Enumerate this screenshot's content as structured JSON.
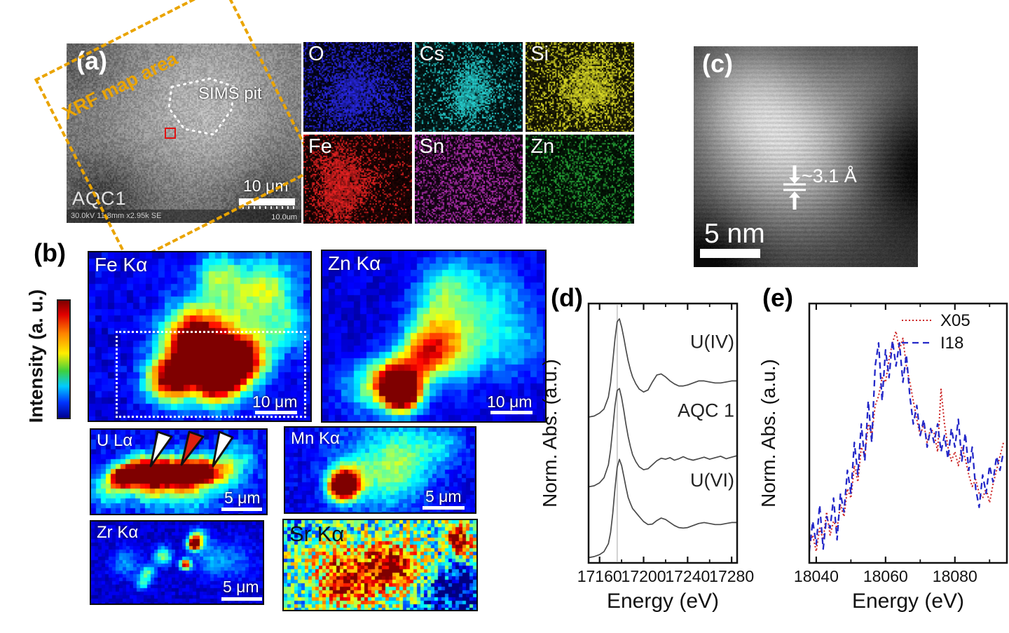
{
  "panel_a": {
    "label": "(a)",
    "xrf_area_label": "XRF map area",
    "sims_pit_label": "SIMS pit",
    "sample_id": "AQC1",
    "scalebar": "10 μm",
    "meta_info": "30.0kV 11.8mm x2.95k SE",
    "meta_scale": "10.0um",
    "dash_color": "#eaa400",
    "marker_color": "#e01212"
  },
  "eds": {
    "maps": [
      {
        "element": "O",
        "color": "#2a2af0"
      },
      {
        "element": "Cs",
        "color": "#28d8d8"
      },
      {
        "element": "Si",
        "color": "#e6e628"
      },
      {
        "element": "Fe",
        "color": "#f02323"
      },
      {
        "element": "Sn",
        "color": "#c032c0"
      },
      {
        "element": "Zn",
        "color": "#28b43c"
      }
    ]
  },
  "panel_b": {
    "label": "(b)",
    "colorbar_title": "Intensity (a. u.)",
    "colorbar_top_color": "#7f0000",
    "colorbar_bottom_color": "#000090",
    "maps": [
      {
        "id": "fe",
        "label": "Fe Kα",
        "scalebar": "10 μm"
      },
      {
        "id": "zn",
        "label": "Zn Kα",
        "scalebar": "10 μm"
      },
      {
        "id": "u",
        "label": "U Lα",
        "scalebar": "5 μm"
      },
      {
        "id": "mn",
        "label": "Mn Kα",
        "scalebar": "5 μm"
      },
      {
        "id": "zr",
        "label": "Zr Kα",
        "scalebar": "5 μm"
      },
      {
        "id": "sr",
        "label": "Sr Kα",
        "scalebar": ""
      }
    ]
  },
  "panel_c": {
    "label": "(c)",
    "spacing_annotation": "~3.1 Å",
    "scalebar": "5 nm"
  },
  "panel_d": {
    "label": "(d)"
  },
  "panel_e": {
    "label": "(e)"
  },
  "chart_data": [
    {
      "id": "d",
      "type": "line",
      "xlabel": "Energy (eV)",
      "ylabel": "Norm. Abs. (a.u.)",
      "xlim": [
        17150,
        17285
      ],
      "ylim": [
        0,
        2.38
      ],
      "xticks": [
        17160,
        17200,
        17240,
        17280
      ],
      "xticks_minor": [
        17180,
        17220,
        17260
      ],
      "refline_x": 17176,
      "x": [
        17150,
        17155,
        17160,
        17164,
        17168,
        17170,
        17172,
        17174,
        17176,
        17178,
        17180,
        17182,
        17184,
        17186,
        17188,
        17190,
        17193,
        17196,
        17200,
        17204,
        17208,
        17212,
        17216,
        17220,
        17224,
        17228,
        17232,
        17236,
        17240,
        17245,
        17250,
        17255,
        17260,
        17265,
        17270,
        17275,
        17280,
        17285
      ],
      "series": [
        {
          "name": "U(IV)",
          "color": "#4a4a4a",
          "offset": 1.32,
          "scale": 0.92,
          "label_y": 1.97,
          "y": [
            0.02,
            0.03,
            0.06,
            0.1,
            0.22,
            0.36,
            0.57,
            0.8,
            0.97,
            1.0,
            0.92,
            0.81,
            0.69,
            0.58,
            0.49,
            0.42,
            0.35,
            0.3,
            0.27,
            0.29,
            0.37,
            0.44,
            0.45,
            0.42,
            0.38,
            0.35,
            0.33,
            0.33,
            0.34,
            0.36,
            0.38,
            0.38,
            0.37,
            0.36,
            0.36,
            0.37,
            0.38,
            0.38
          ]
        },
        {
          "name": "AQC 1",
          "color": "#4a4a4a",
          "offset": 0.68,
          "scale": 0.92,
          "label_y": 1.34,
          "y": [
            0.02,
            0.03,
            0.06,
            0.11,
            0.24,
            0.39,
            0.6,
            0.83,
            0.98,
            1.0,
            0.91,
            0.78,
            0.64,
            0.52,
            0.42,
            0.34,
            0.27,
            0.22,
            0.19,
            0.2,
            0.24,
            0.28,
            0.305,
            0.295,
            0.31,
            0.285,
            0.3,
            0.32,
            0.3,
            0.285,
            0.3,
            0.315,
            0.295,
            0.31,
            0.325,
            0.3,
            0.315,
            0.33
          ]
        },
        {
          "name": "U(VI)",
          "color": "#4a4a4a",
          "offset": 0.03,
          "scale": 0.92,
          "label_y": 0.7,
          "y": [
            0.02,
            0.03,
            0.05,
            0.08,
            0.16,
            0.27,
            0.46,
            0.71,
            0.92,
            1.0,
            0.94,
            0.83,
            0.72,
            0.62,
            0.56,
            0.51,
            0.47,
            0.43,
            0.38,
            0.35,
            0.355,
            0.39,
            0.415,
            0.4,
            0.37,
            0.34,
            0.32,
            0.315,
            0.32,
            0.34,
            0.36,
            0.37,
            0.36,
            0.35,
            0.35,
            0.36,
            0.37,
            0.37
          ]
        }
      ]
    },
    {
      "id": "e",
      "type": "line",
      "xlabel": "Energy (eV)",
      "ylabel": "Norm. Abs. (a.u.)",
      "xlim": [
        18038,
        18095
      ],
      "ylim": [
        0,
        1.12
      ],
      "xticks": [
        18040,
        18060,
        18080
      ],
      "xticks_minor": [
        18050,
        18070,
        18090
      ],
      "legend": true,
      "x": [
        18038,
        18039,
        18040,
        18041,
        18042,
        18043,
        18044,
        18045,
        18046,
        18047,
        18048,
        18049,
        18050,
        18051,
        18052,
        18053,
        18054,
        18055,
        18056,
        18057,
        18058,
        18059,
        18060,
        18061,
        18062,
        18063,
        18064,
        18065,
        18066,
        18067,
        18068,
        18069,
        18070,
        18071,
        18072,
        18073,
        18074,
        18075,
        18076,
        18077,
        18078,
        18079,
        18080,
        18081,
        18082,
        18083,
        18084,
        18085,
        18086,
        18087,
        18088,
        18089,
        18090,
        18091,
        18092,
        18093,
        18094
      ],
      "series": [
        {
          "name": "X05",
          "color": "#cc2222",
          "dash": "2 3",
          "width": 2,
          "y": [
            0.08,
            0.12,
            0.05,
            0.15,
            0.1,
            0.22,
            0.12,
            0.18,
            0.15,
            0.25,
            0.2,
            0.32,
            0.28,
            0.42,
            0.35,
            0.5,
            0.46,
            0.6,
            0.55,
            0.68,
            0.72,
            0.8,
            0.78,
            0.88,
            0.95,
            1.0,
            0.92,
            0.97,
            0.85,
            0.78,
            0.7,
            0.62,
            0.55,
            0.6,
            0.52,
            0.58,
            0.56,
            0.48,
            0.75,
            0.6,
            0.5,
            0.44,
            0.48,
            0.42,
            0.5,
            0.45,
            0.38,
            0.33,
            0.36,
            0.3,
            0.28,
            0.32,
            0.26,
            0.34,
            0.4,
            0.46,
            0.52
          ]
        },
        {
          "name": "I18",
          "color": "#2428c8",
          "dash": "9 6",
          "width": 2.3,
          "y": [
            0.05,
            0.18,
            0.08,
            0.25,
            0.06,
            0.2,
            0.15,
            0.28,
            0.1,
            0.3,
            0.22,
            0.4,
            0.3,
            0.52,
            0.38,
            0.6,
            0.44,
            0.7,
            0.52,
            0.85,
            0.95,
            0.7,
            0.92,
            0.8,
            0.96,
            0.85,
            0.95,
            0.78,
            0.9,
            0.72,
            0.6,
            0.68,
            0.55,
            0.62,
            0.5,
            0.58,
            0.52,
            0.6,
            0.48,
            0.55,
            0.45,
            0.58,
            0.5,
            0.62,
            0.44,
            0.56,
            0.4,
            0.5,
            0.32,
            0.24,
            0.38,
            0.3,
            0.42,
            0.35,
            0.46,
            0.4,
            0.48
          ]
        }
      ]
    }
  ]
}
